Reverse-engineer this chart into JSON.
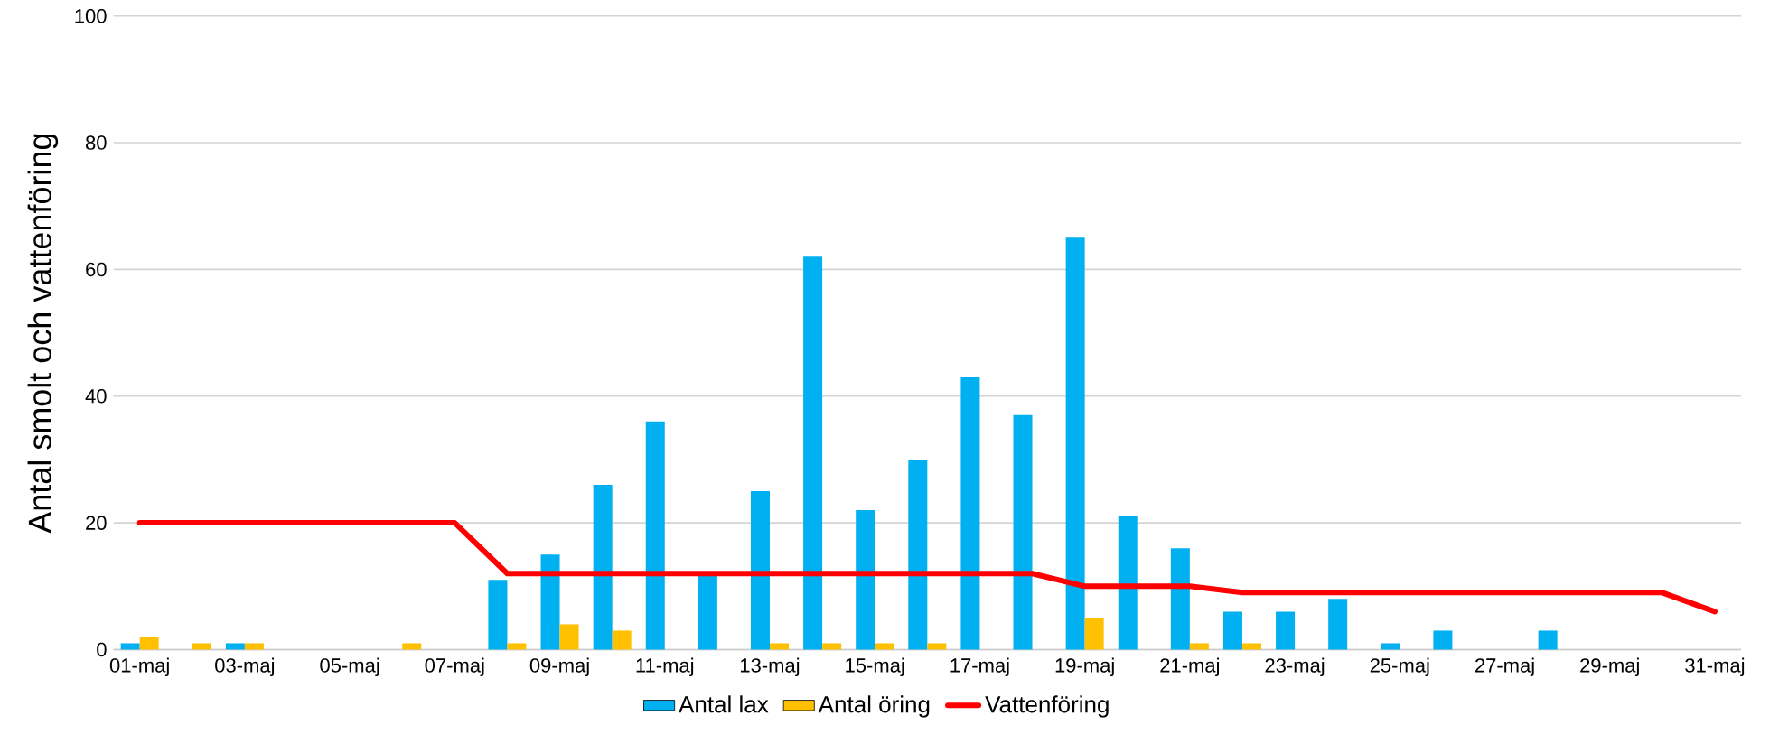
{
  "chart_data": {
    "type": "bar",
    "ylabel": "Antal smolt och vattenföring",
    "categories": [
      "01-maj",
      null,
      "03-maj",
      null,
      "05-maj",
      null,
      "07-maj",
      null,
      "09-maj",
      null,
      "11-maj",
      null,
      "13-maj",
      null,
      "15-maj",
      null,
      "17-maj",
      null,
      "19-maj",
      null,
      "21-maj",
      null,
      "23-maj",
      null,
      "25-maj",
      null,
      "27-maj",
      null,
      "29-maj",
      null,
      "31-maj"
    ],
    "series": [
      {
        "name": "Antal lax",
        "color": "#00b0f0",
        "values": [
          1,
          0,
          1,
          0,
          0,
          0,
          0,
          11,
          15,
          26,
          36,
          12,
          25,
          62,
          22,
          30,
          43,
          37,
          65,
          21,
          16,
          6,
          6,
          8,
          1,
          3,
          0,
          3,
          0,
          0,
          0
        ]
      },
      {
        "name": "Antal öring",
        "color": "#ffc000",
        "values": [
          2,
          1,
          1,
          0,
          0,
          1,
          0,
          1,
          4,
          3,
          0,
          0,
          1,
          1,
          1,
          1,
          0,
          0,
          5,
          0,
          1,
          1,
          0,
          0,
          0,
          0,
          0,
          0,
          0,
          0,
          0
        ]
      },
      {
        "name": "Vattenföring",
        "type": "line",
        "color": "#ff0000",
        "values": [
          20,
          20,
          20,
          20,
          20,
          20,
          20,
          12,
          12,
          12,
          12,
          12,
          12,
          12,
          12,
          12,
          12,
          12,
          10,
          10,
          10,
          9,
          9,
          9,
          9,
          9,
          9,
          9,
          9,
          9,
          6
        ]
      }
    ],
    "ylim": [
      0,
      100
    ],
    "yticks": [
      0,
      20,
      40,
      60,
      80,
      100
    ],
    "grid": "y",
    "legend": "bottom",
    "marker": "none"
  }
}
